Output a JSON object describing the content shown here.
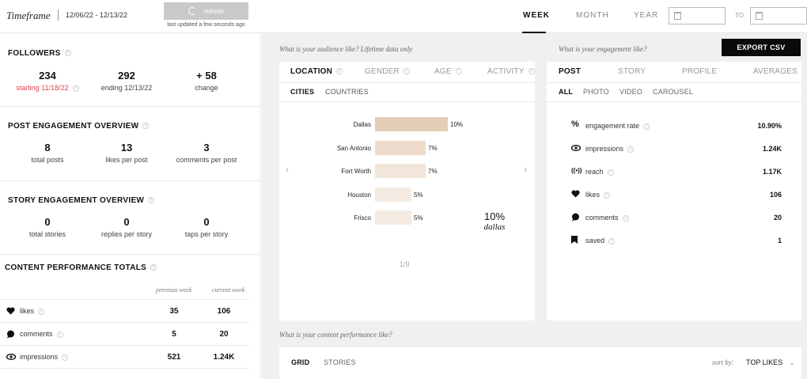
{
  "top": {
    "timeframe_label": "Timeframe",
    "date_range": "12/06/22 - 12/13/22",
    "refresh_label": "refresh",
    "last_updated": "last updated a few seconds ago",
    "periods": [
      "WEEK",
      "MONTH",
      "YEAR"
    ],
    "active_period": "WEEK",
    "to_label": "TO"
  },
  "followers": {
    "title": "FOLLOWERS",
    "starting_value": "234",
    "starting_label": "starting 11/18/22",
    "ending_value": "292",
    "ending_label": "ending 12/13/22",
    "change_value": "+ 58",
    "change_label": "change"
  },
  "post_engagement": {
    "title": "POST ENGAGEMENT OVERVIEW",
    "stats": [
      {
        "value": "8",
        "label": "total posts"
      },
      {
        "value": "13",
        "label": "likes per post"
      },
      {
        "value": "3",
        "label": "comments per post"
      }
    ]
  },
  "story_engagement": {
    "title": "STORY ENGAGEMENT OVERVIEW",
    "stats": [
      {
        "value": "0",
        "label": "total stories"
      },
      {
        "value": "0",
        "label": "replies per story"
      },
      {
        "value": "0",
        "label": "taps per story"
      }
    ]
  },
  "content_totals": {
    "title": "CONTENT PERFORMANCE TOTALS",
    "col_previous": "previous week",
    "col_current": "current week",
    "rows": [
      {
        "name": "likes",
        "icon": "heart-icon",
        "previous": "35",
        "current": "106"
      },
      {
        "name": "comments",
        "icon": "comment-icon",
        "previous": "5",
        "current": "20"
      },
      {
        "name": "impressions",
        "icon": "eye-icon",
        "previous": "521",
        "current": "1.24K"
      }
    ]
  },
  "audience": {
    "question": "What is your audience like? Lifetime data only",
    "tabs": [
      "LOCATION",
      "GENDER",
      "AGE",
      "ACTIVITY"
    ],
    "active_tab": "LOCATION",
    "subtabs": [
      "CITIES",
      "COUNTRIES"
    ],
    "active_subtab": "CITIES",
    "highlight_value": "10%",
    "highlight_label": "dallas",
    "pager": "1/9",
    "chart_data": {
      "type": "bar",
      "categories": [
        "Dallas",
        "San Antonio",
        "Fort Worth",
        "Houston",
        "Frisco"
      ],
      "values": [
        10,
        7,
        7,
        5,
        5
      ],
      "labels": [
        "10%",
        "7%",
        "7%",
        "5%",
        "5%"
      ],
      "colors": [
        "#e3cdb6",
        "#eddccb",
        "#f2e6da",
        "#f4ebe2",
        "#f4ebe2"
      ]
    }
  },
  "engagement": {
    "question": "What is your engagement like?",
    "export_label": "EXPORT CSV",
    "tabs": [
      "POST",
      "STORY",
      "PROFILE",
      "AVERAGES"
    ],
    "active_tab": "POST",
    "subtabs": [
      "ALL",
      "PHOTO",
      "VIDEO",
      "CAROUSEL"
    ],
    "active_subtab": "ALL",
    "rows": [
      {
        "name": "engagement rate",
        "icon": "percent-icon",
        "value": "10.90%"
      },
      {
        "name": "impressions",
        "icon": "eye-icon",
        "value": "1.24K"
      },
      {
        "name": "reach",
        "icon": "reach-icon",
        "value": "1.17K"
      },
      {
        "name": "likes",
        "icon": "heart-icon",
        "value": "106"
      },
      {
        "name": "comments",
        "icon": "comment-icon",
        "value": "20"
      },
      {
        "name": "saved",
        "icon": "bookmark-icon",
        "value": "1"
      }
    ]
  },
  "content_performance": {
    "question": "What is your content performance like?",
    "tabs": [
      "GRID",
      "STORIES"
    ],
    "active_tab": "GRID",
    "sort_label": "sort by:",
    "sort_value": "TOP LIKES"
  }
}
